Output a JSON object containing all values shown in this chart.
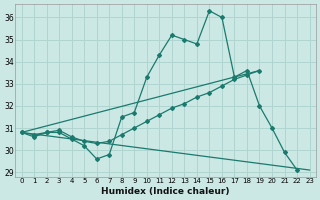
{
  "xlabel": "Humidex (Indice chaleur)",
  "background_color": "#cce8e4",
  "grid_color": "#b0d4cf",
  "line_color": "#1a7a6e",
  "xlim": [
    -0.5,
    23.5
  ],
  "ylim": [
    28.8,
    36.6
  ],
  "yticks": [
    29,
    30,
    31,
    32,
    33,
    34,
    35,
    36
  ],
  "xticks": [
    0,
    1,
    2,
    3,
    4,
    5,
    6,
    7,
    8,
    9,
    10,
    11,
    12,
    13,
    14,
    15,
    16,
    17,
    18,
    19,
    20,
    21,
    22,
    23
  ],
  "line1_x": [
    0,
    1,
    2,
    3,
    4,
    5,
    6,
    7,
    8,
    9,
    10,
    11,
    12,
    13,
    14,
    15,
    16,
    17,
    18,
    19,
    20,
    21,
    22
  ],
  "line1_y": [
    30.8,
    30.6,
    30.8,
    30.8,
    30.5,
    30.2,
    29.6,
    29.8,
    31.5,
    31.7,
    33.3,
    34.3,
    35.2,
    35.0,
    34.8,
    36.3,
    36.0,
    33.3,
    33.6,
    32.0,
    31.0,
    29.9,
    29.1
  ],
  "line2_x": [
    0,
    1,
    2,
    3,
    4,
    5,
    6,
    7,
    8,
    9,
    10,
    11,
    12,
    13,
    14,
    15,
    16,
    17,
    18,
    19
  ],
  "line2_y": [
    30.8,
    30.7,
    30.8,
    30.9,
    30.6,
    30.4,
    30.3,
    30.4,
    30.7,
    31.0,
    31.3,
    31.6,
    31.9,
    32.1,
    32.4,
    32.6,
    32.9,
    33.2,
    33.4,
    33.6
  ],
  "line3_x": [
    0,
    23
  ],
  "line3_y": [
    30.8,
    29.1
  ],
  "line4_x": [
    0,
    19
  ],
  "line4_y": [
    30.8,
    33.6
  ]
}
